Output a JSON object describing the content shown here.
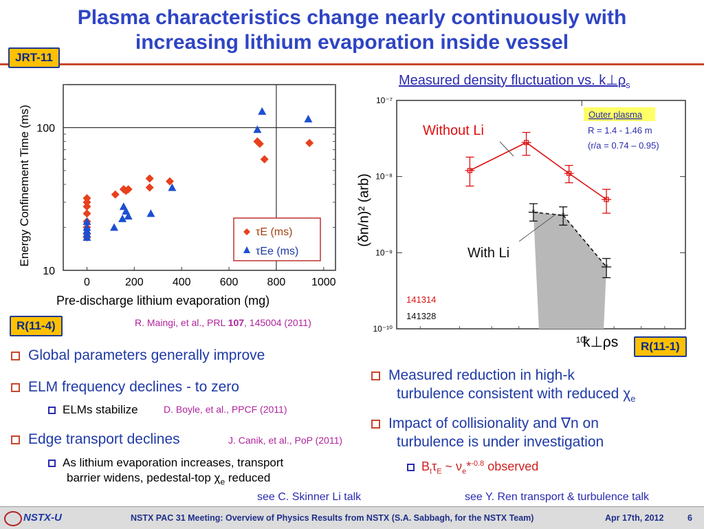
{
  "slide": {
    "title_line1": "Plasma characteristics change nearly continuously with",
    "title_line2": "increasing lithium evaporation inside vessel",
    "tag_left_top": "JRT-11",
    "tag_left_mid": "R(11-4)",
    "tag_right": "R(11-1)",
    "ref_maingi_pre": "R. Maingi, et al., PRL ",
    "ref_maingi_bold": "107",
    "ref_maingi_post": ", 145004 (2011)",
    "bullets_left": [
      "Global parameters generally improve",
      "ELM frequency declines - to zero",
      "Edge transport declines"
    ],
    "sub_elms": "ELMs stabilize",
    "ref_boyle": "D. Boyle, et al., PPCF (2011)",
    "ref_canik": "J. Canik, et al., PoP (2011)",
    "sub_transport_line1": "As lithium evaporation increases, transport",
    "sub_transport_line2_pre": "barrier widens, pedestal-top ",
    "sub_transport_line2_post": " reduced",
    "see_skinner": "see C. Skinner Li talk",
    "bullets_right": [
      {
        "line1": "Measured reduction in high-k",
        "line2_pre": "turbulence consistent with reduced "
      },
      {
        "line1": "Impact of collisionality and ",
        "line1_sym": "∇n on",
        "line2": "turbulence is under investigation"
      }
    ],
    "sub_right": "observed",
    "see_ren": "see Y. Ren transport & turbulence talk",
    "footer_logo": "NSTX-U",
    "footer_text": "NSTX PAC 31 Meeting: Overview of Physics Results from NSTX (S.A. Sabbagh, for the NSTX Team)",
    "footer_date": "Apr 17th, 2012",
    "footer_page": "6"
  },
  "chart_data": [
    {
      "type": "scatter",
      "ylabel": "Energy Confinement Time (ms)",
      "xlabel": "Pre-discharge lithium evaporation (mg)",
      "x_ticks": [
        0,
        200,
        400,
        600,
        800,
        1000
      ],
      "y_tick_labels": [
        "10",
        "100"
      ],
      "xlim": [
        -100,
        1050
      ],
      "ylim": [
        10,
        200
      ],
      "yscale": "log",
      "legend_position": "bottom-right",
      "series": [
        {
          "name": "τE (ms)",
          "color": "#e8401c",
          "marker": "diamond",
          "points": [
            [
              0,
              32
            ],
            [
              0,
              30
            ],
            [
              0,
              28
            ],
            [
              0,
              25
            ],
            [
              0,
              22
            ],
            [
              0,
              20
            ],
            [
              0,
              18
            ],
            [
              0,
              17
            ],
            [
              120,
              34
            ],
            [
              155,
              37
            ],
            [
              165,
              36
            ],
            [
              175,
              37
            ],
            [
              265,
              44
            ],
            [
              265,
              38
            ],
            [
              350,
              42
            ],
            [
              720,
              80
            ],
            [
              730,
              77
            ],
            [
              750,
              60
            ],
            [
              940,
              78
            ]
          ]
        },
        {
          "name": "τEe (ms)",
          "color": "#1c4fd1",
          "marker": "triangle",
          "points": [
            [
              0,
              22
            ],
            [
              0,
              20
            ],
            [
              0,
              19
            ],
            [
              0,
              18
            ],
            [
              0,
              17
            ],
            [
              115,
              20
            ],
            [
              150,
              23
            ],
            [
              155,
              28
            ],
            [
              165,
              26
            ],
            [
              175,
              24
            ],
            [
              270,
              25
            ],
            [
              360,
              38
            ],
            [
              720,
              97
            ],
            [
              740,
              130
            ],
            [
              935,
              115
            ]
          ]
        }
      ]
    },
    {
      "type": "line",
      "title_pre": "Measured density fluctuation vs. k",
      "ylabel": "(δn/n)² (arb)",
      "xlabel": "k⊥ρs",
      "xscale": "log",
      "yscale": "log",
      "x_tick_label": "10¹",
      "y_tick_labels": [
        "10⁻⁷",
        "10⁻⁸",
        "10⁻⁹",
        "10⁻¹⁰"
      ],
      "ylim": [
        1e-10,
        1e-07
      ],
      "annotation_without": "Without Li",
      "annotation_with": "With Li",
      "info_box": [
        "Outer plasma",
        "R = 1.4 - 1.46 m",
        "(r/a = 0.74 – 0.95)"
      ],
      "shot_red": "141314",
      "shot_black": "141328",
      "series": [
        {
          "name": "141314",
          "color": "#dd1111",
          "x": [
            5.3,
            7.3,
            9.3,
            11.5
          ],
          "y": [
            1.2e-08,
            2.8e-08,
            1.1e-08,
            5e-09
          ],
          "yerr_lo": [
            7.5e-09,
            1.9e-08,
            8.3e-09,
            3.3e-09
          ],
          "yerr_hi": [
            1.8e-08,
            3.8e-08,
            1.4e-08,
            6.8e-09
          ]
        },
        {
          "name": "141328",
          "color": "#111111",
          "x": [
            7.6,
            9.0,
            11.5
          ],
          "y": [
            3.4e-09,
            3.1e-09,
            6.5e-10
          ],
          "yerr_lo": [
            2.6e-09,
            2.3e-09,
            4.7e-10
          ],
          "yerr_hi": [
            4.4e-09,
            4e-09,
            8.4e-10
          ]
        }
      ]
    }
  ]
}
